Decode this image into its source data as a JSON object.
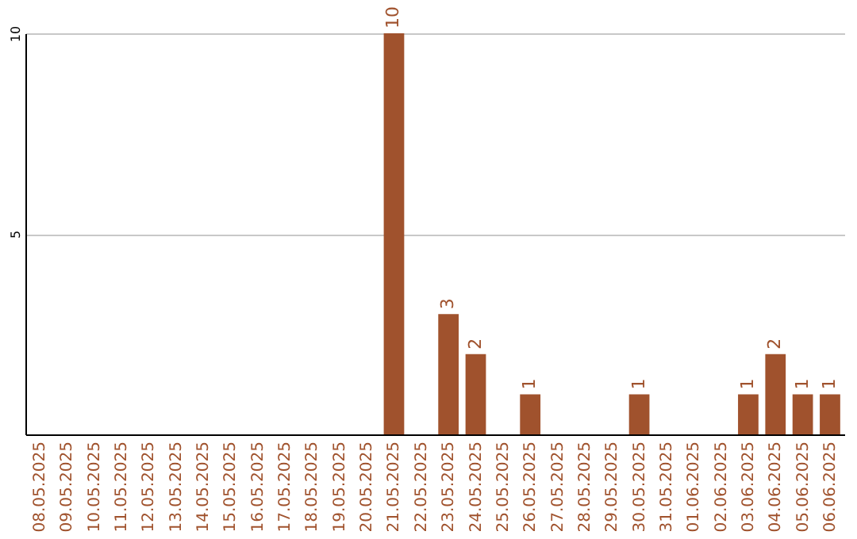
{
  "chart_data": {
    "type": "bar",
    "categories": [
      "08.05.2025",
      "09.05.2025",
      "10.05.2025",
      "11.05.2025",
      "12.05.2025",
      "13.05.2025",
      "14.05.2025",
      "15.05.2025",
      "16.05.2025",
      "17.05.2025",
      "18.05.2025",
      "19.05.2025",
      "20.05.2025",
      "21.05.2025",
      "22.05.2025",
      "23.05.2025",
      "24.05.2025",
      "25.05.2025",
      "26.05.2025",
      "27.05.2025",
      "28.05.2025",
      "29.05.2025",
      "30.05.2025",
      "31.05.2025",
      "01.06.2025",
      "02.06.2025",
      "03.06.2025",
      "04.06.2025",
      "05.06.2025",
      "06.06.2025"
    ],
    "values": [
      0,
      0,
      0,
      0,
      0,
      0,
      0,
      0,
      0,
      0,
      0,
      0,
      0,
      10,
      0,
      3,
      2,
      0,
      1,
      0,
      0,
      0,
      1,
      0,
      0,
      0,
      1,
      2,
      1,
      1
    ],
    "value_labels": [
      null,
      null,
      null,
      null,
      null,
      null,
      null,
      null,
      null,
      null,
      null,
      null,
      null,
      "10",
      null,
      "3",
      "2",
      null,
      "1",
      null,
      null,
      null,
      "1",
      null,
      null,
      null,
      "1",
      "2",
      "1",
      "1"
    ],
    "color": "#a0522d",
    "ylim": [
      0,
      10
    ],
    "yticks": [
      5,
      10
    ],
    "grid": "y"
  }
}
